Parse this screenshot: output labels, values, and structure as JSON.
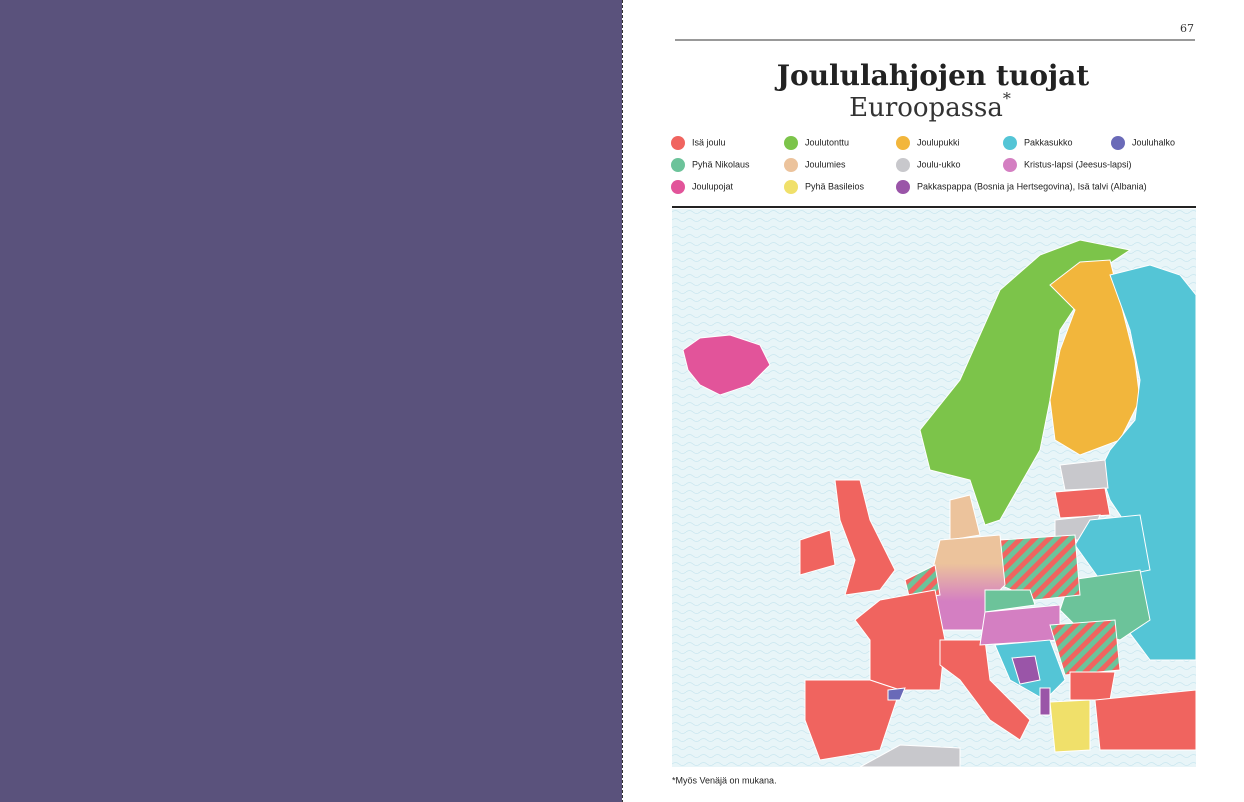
{
  "page_number": "67",
  "header": {
    "title": "Joululahjojen tuojat",
    "subtitle": "Euroopassa",
    "subtitle_mark": "*"
  },
  "legend": [
    [
      {
        "label": "Isä joulu",
        "color": "#f0645f"
      },
      {
        "label": "Joulutonttu",
        "color": "#7cc44a"
      },
      {
        "label": "Joulupukki",
        "color": "#f2b63c"
      },
      {
        "label": "Pakkasukko",
        "color": "#54c5d6"
      },
      {
        "label": "Jouluhalko",
        "color": "#6a6ab8"
      }
    ],
    [
      {
        "label": "Pyhä Nikolaus",
        "color": "#6cc39a"
      },
      {
        "label": "Joulumies",
        "color": "#ecc39c"
      },
      {
        "label": "Joulu-ukko",
        "color": "#c8c8cc"
      },
      {
        "label": "Kristus-lapsi (Jeesus-lapsi)",
        "color": "#d47fc2"
      }
    ],
    [
      {
        "label": "Joulupojat",
        "color": "#e2549a"
      },
      {
        "label": "Pyhä Basileios",
        "color": "#f0e06a"
      },
      {
        "label": "Pakkaspappa (Bosnia ja Hertsegovina), Isä talvi (Albania)",
        "color": "#9a55a8"
      }
    ]
  ],
  "footnote": "*Myös Venäjä on mukana."
}
